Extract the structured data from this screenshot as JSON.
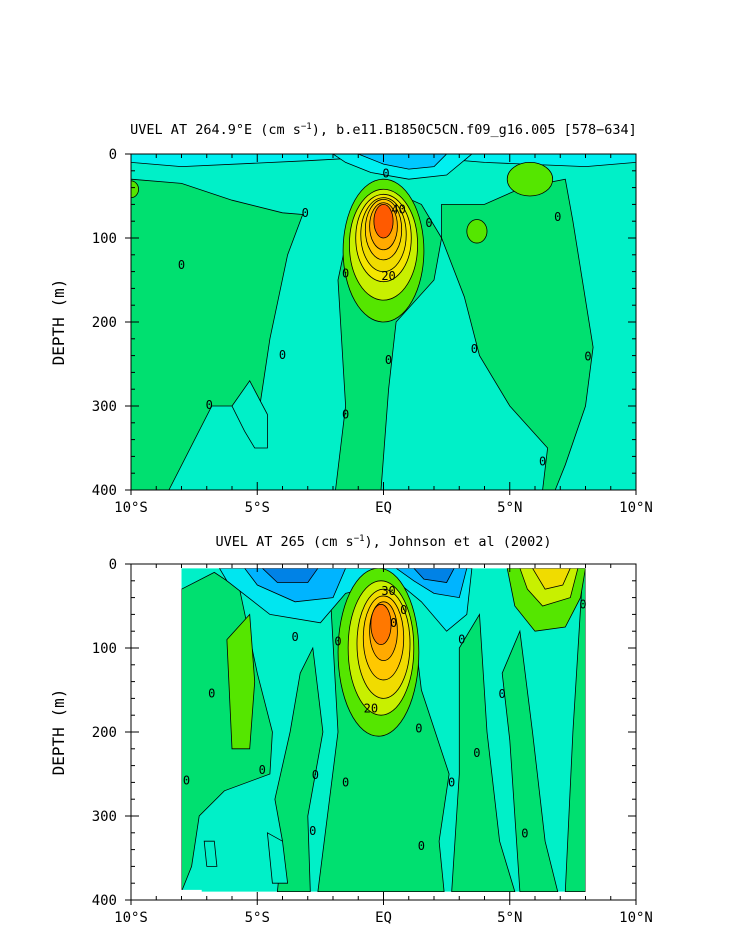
{
  "chart_data": [
    {
      "type": "contour",
      "title": "UVEL AT 264.9°E (cm s⁻¹), b.e11.B1850C5CN.f09_g16.005 [578-634]",
      "title_parts": {
        "pre": "UVEL AT 264.9°E (cm s",
        "sup": "−1",
        "post": "), b.e11.B1850C5CN.f09_g16.005 [578−634]"
      },
      "ylabel": "DEPTH (m)",
      "xlim": [
        -10,
        10
      ],
      "ylim": [
        0,
        400
      ],
      "y_inverted": true,
      "x_ticks": [
        {
          "v": -10,
          "label": "10°S"
        },
        {
          "v": -5,
          "label": "5°S"
        },
        {
          "v": 0,
          "label": "EQ"
        },
        {
          "v": 5,
          "label": "5°N"
        },
        {
          "v": 10,
          "label": "10°N"
        }
      ],
      "y_ticks": [
        {
          "v": 0,
          "label": "0"
        },
        {
          "v": 100,
          "label": "100"
        },
        {
          "v": 200,
          "label": "200"
        },
        {
          "v": 300,
          "label": "300"
        },
        {
          "v": 400,
          "label": "400"
        }
      ],
      "contour_labels": [
        {
          "text": "0",
          "x": -8.0,
          "y": 132
        },
        {
          "text": "0",
          "x": -6.9,
          "y": 299
        },
        {
          "text": "0",
          "x": -4.0,
          "y": 239
        },
        {
          "text": "0",
          "x": -3.1,
          "y": 70
        },
        {
          "text": "0",
          "x": -1.5,
          "y": 142
        },
        {
          "text": "0",
          "x": -1.5,
          "y": 310
        },
        {
          "text": "0",
          "x": 0.1,
          "y": 23
        },
        {
          "text": "0",
          "x": 0.2,
          "y": 245
        },
        {
          "text": "0",
          "x": 1.8,
          "y": 82
        },
        {
          "text": "0",
          "x": 3.6,
          "y": 232
        },
        {
          "text": "0",
          "x": 6.3,
          "y": 366
        },
        {
          "text": "0",
          "x": 6.9,
          "y": 75
        },
        {
          "text": "0",
          "x": 8.1,
          "y": 241
        },
        {
          "text": "20",
          "x": 0.2,
          "y": 145
        },
        {
          "text": "40",
          "x": 0.6,
          "y": 66
        }
      ],
      "colors": {
        "neg_strong": "#0096ff",
        "neg_mid": "#00c8ff",
        "neg_weak": "#00f0f0",
        "zero": "#00f0c8",
        "pos_weak": "#00e070",
        "pos_mid": "#55e600",
        "pos_20": "#c8f000",
        "pos_30": "#f0dc00",
        "pos_40": "#ffaa00",
        "pos_max": "#ff5a00"
      }
    },
    {
      "type": "contour",
      "title": "UVEL AT 265 (cm s⁻¹), Johnson et al (2002)",
      "title_parts": {
        "pre": "UVEL AT 265 (cm s",
        "sup": "−1",
        "post": "), Johnson et al (2002)"
      },
      "ylabel": "DEPTH (m)",
      "xlim": [
        -10,
        10
      ],
      "ylim": [
        0,
        400
      ],
      "y_inverted": true,
      "x_ticks": [
        {
          "v": -10,
          "label": "10°S"
        },
        {
          "v": -5,
          "label": "5°S"
        },
        {
          "v": 0,
          "label": "EQ"
        },
        {
          "v": 5,
          "label": "5°N"
        },
        {
          "v": 10,
          "label": "10°N"
        }
      ],
      "y_ticks": [
        {
          "v": 0,
          "label": "0"
        },
        {
          "v": 100,
          "label": "100"
        },
        {
          "v": 200,
          "label": "200"
        },
        {
          "v": 300,
          "label": "300"
        },
        {
          "v": 400,
          "label": "400"
        }
      ],
      "data_x_range": [
        -8,
        8
      ],
      "contour_labels": [
        {
          "text": "0",
          "x": -7.8,
          "y": 258
        },
        {
          "text": "0",
          "x": -6.8,
          "y": 154
        },
        {
          "text": "0",
          "x": -4.8,
          "y": 245
        },
        {
          "text": "0",
          "x": -3.5,
          "y": 87
        },
        {
          "text": "0",
          "x": -2.7,
          "y": 251
        },
        {
          "text": "0",
          "x": -2.8,
          "y": 318
        },
        {
          "text": "0",
          "x": -1.8,
          "y": 92
        },
        {
          "text": "0",
          "x": -1.5,
          "y": 260
        },
        {
          "text": "0",
          "x": 0.8,
          "y": 55
        },
        {
          "text": "0",
          "x": 1.4,
          "y": 196
        },
        {
          "text": "0",
          "x": 1.5,
          "y": 336
        },
        {
          "text": "0",
          "x": 2.7,
          "y": 260
        },
        {
          "text": "0",
          "x": 3.1,
          "y": 90
        },
        {
          "text": "0",
          "x": 3.7,
          "y": 225
        },
        {
          "text": "0",
          "x": 4.7,
          "y": 155
        },
        {
          "text": "0",
          "x": 5.6,
          "y": 321
        },
        {
          "text": "0",
          "x": 7.9,
          "y": 48
        },
        {
          "text": "0",
          "x": 0.4,
          "y": 70
        },
        {
          "text": "30",
          "x": 0.2,
          "y": 32
        },
        {
          "text": "20",
          "x": -0.5,
          "y": 172
        }
      ],
      "colors": {
        "neg_strong": "#0082e6",
        "neg_mid": "#00b4ff",
        "neg_weak": "#00e6f0",
        "zero": "#00f0c8",
        "pos_weak": "#00e070",
        "pos_mid": "#55e600",
        "pos_20": "#c8f000",
        "pos_30": "#f0dc00",
        "pos_40": "#ffaa00",
        "pos_max": "#ff7800"
      }
    }
  ]
}
